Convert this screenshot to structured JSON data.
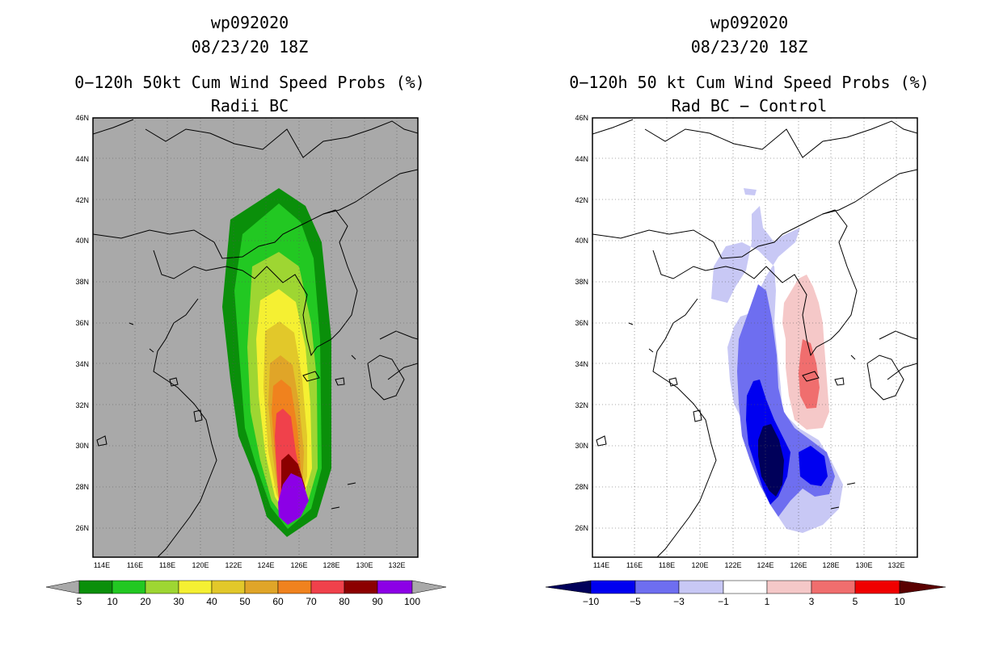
{
  "left": {
    "storm_id": "wp092020",
    "datetime": "08/23/20 18Z",
    "product": "0−120h 50kt Cum Wind Speed Probs (%)",
    "subtitle": "Radii BC",
    "lat_labels": [
      "46N",
      "44N",
      "42N",
      "40N",
      "38N",
      "36N",
      "34N",
      "32N",
      "30N",
      "28N",
      "26N"
    ],
    "lon_labels": [
      "114E",
      "116E",
      "118E",
      "120E",
      "122E",
      "124E",
      "126E",
      "128E",
      "130E",
      "132E"
    ],
    "colorbar_labels": [
      "5",
      "10",
      "20",
      "30",
      "40",
      "50",
      "60",
      "70",
      "80",
      "90",
      "100"
    ],
    "colors": {
      "land_bg": "#a9a9a9",
      "c5": "#0a8f0a",
      "c10": "#22c822",
      "c20": "#9ed632",
      "c30": "#f5f032",
      "c40": "#e2c82a",
      "c50": "#e0a528",
      "c60": "#f0821e",
      "c70": "#f0414b",
      "c80": "#8c0000",
      "c90": "#8c00e6"
    }
  },
  "right": {
    "storm_id": "wp092020",
    "datetime": "08/23/20 18Z",
    "product": "0−120h 50 kt Cum Wind Speed Probs (%)",
    "subtitle": "Rad BC − Control",
    "lat_labels": [
      "46N",
      "44N",
      "42N",
      "40N",
      "38N",
      "36N",
      "34N",
      "32N",
      "30N",
      "28N",
      "26N"
    ],
    "lon_labels": [
      "114E",
      "116E",
      "118E",
      "120E",
      "122E",
      "124E",
      "126E",
      "128E",
      "130E",
      "132E"
    ],
    "colorbar_labels": [
      "−10",
      "−5",
      "−3",
      "−1",
      "1",
      "3",
      "5",
      "10"
    ],
    "colors": {
      "n10": "#00005a",
      "n5": "#0000f0",
      "n3": "#6e6ef0",
      "n1": "#c8c8f5",
      "zero": "#ffffff",
      "p1": "#f5c8c8",
      "p3": "#f06e6e",
      "p5": "#f00000",
      "p10": "#5a0000"
    }
  }
}
